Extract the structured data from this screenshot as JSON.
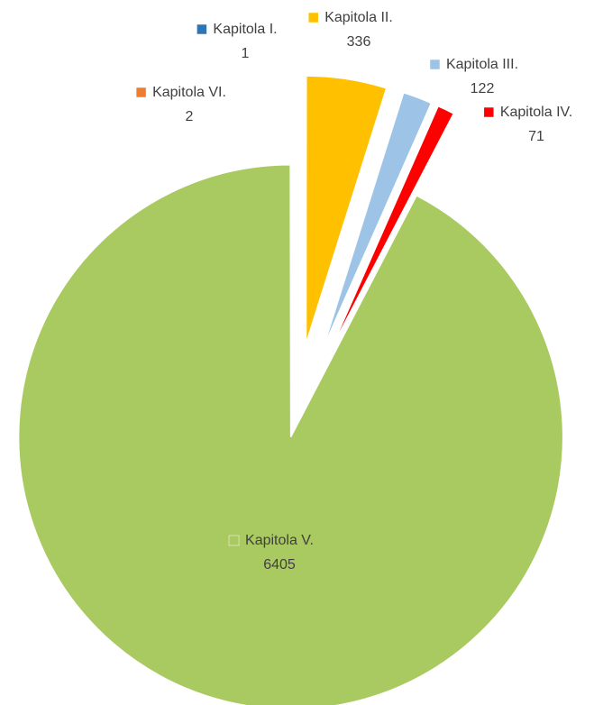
{
  "chart_data": {
    "type": "pie",
    "categories": [
      "Kapitola I.",
      "Kapitola II.",
      "Kapitola III.",
      "Kapitola IV.",
      "Kapitola V.",
      "Kapitola VI."
    ],
    "values": [
      1,
      336,
      122,
      71,
      6405,
      2
    ],
    "colors": [
      "#2e75b6",
      "#ffc000",
      "#9dc3e6",
      "#ff0000",
      "#a9c961",
      "#ed7d31"
    ],
    "start_angle": 0,
    "direction": "clockwise",
    "data_labels": true
  }
}
